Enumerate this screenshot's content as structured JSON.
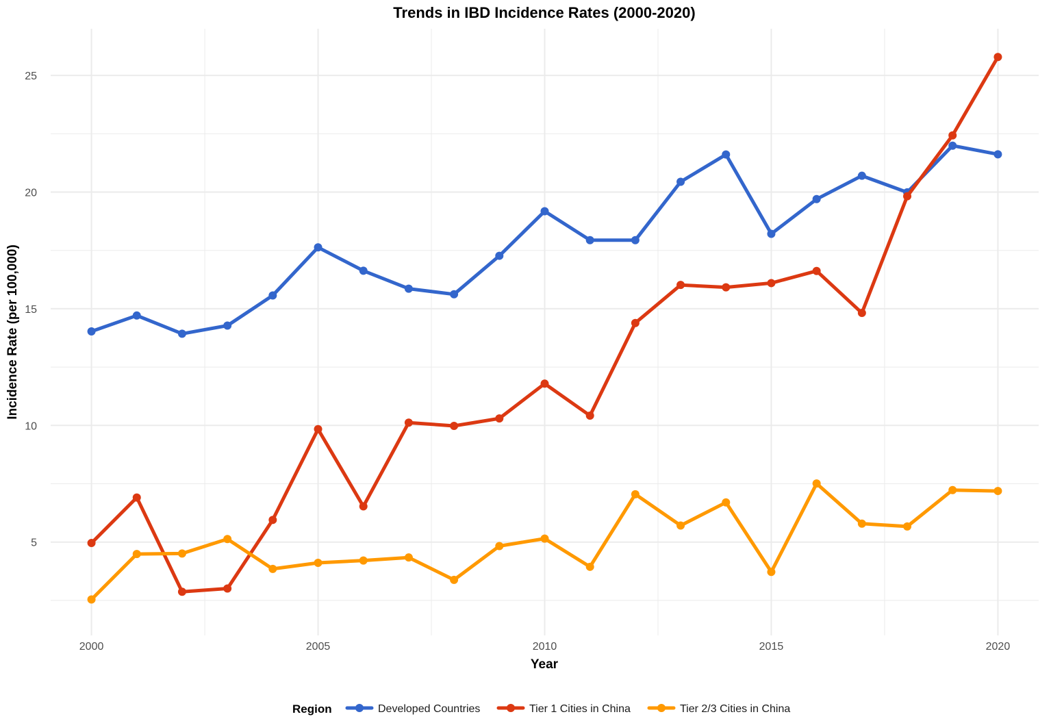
{
  "chart_data": {
    "type": "line",
    "title": "Trends in IBD Incidence Rates (2000-2020)",
    "xlabel": "Year",
    "ylabel": "Incidence Rate (per 100,000)",
    "x": [
      2000,
      2001,
      2002,
      2003,
      2004,
      2005,
      2006,
      2007,
      2008,
      2009,
      2010,
      2011,
      2012,
      2013,
      2014,
      2015,
      2016,
      2017,
      2018,
      2019,
      2020
    ],
    "x_ticks": [
      2000,
      2005,
      2010,
      2015,
      2020
    ],
    "x_tick_labels": [
      "2000",
      "2005",
      "2010",
      "2015",
      "2020"
    ],
    "y_ticks": [
      5,
      10,
      15,
      20,
      25
    ],
    "y_tick_labels": [
      "5",
      "10",
      "15",
      "20",
      "25"
    ],
    "xlim": [
      1999.1,
      2020.9
    ],
    "ylim": [
      1.0,
      27.0
    ],
    "grid": true,
    "legend": {
      "title": "Region",
      "position": "bottom"
    },
    "series": [
      {
        "name": "Developed Countries",
        "color": "#3366cc",
        "values": [
          14.03,
          14.71,
          13.93,
          14.28,
          15.57,
          17.63,
          16.63,
          15.86,
          15.62,
          17.27,
          19.18,
          17.94,
          17.94,
          20.44,
          21.61,
          18.21,
          19.7,
          20.7,
          19.99,
          21.99,
          21.62
        ]
      },
      {
        "name": "Tier 1 Cities in China",
        "color": "#dc3912",
        "values": [
          4.96,
          6.91,
          2.87,
          3.01,
          5.95,
          9.84,
          6.53,
          10.12,
          9.98,
          10.3,
          11.79,
          10.42,
          14.39,
          16.02,
          15.92,
          16.1,
          16.62,
          14.82,
          19.82,
          22.43,
          25.79
        ]
      },
      {
        "name": "Tier 2/3 Cities in China",
        "color": "#ff9900",
        "values": [
          2.54,
          4.49,
          4.51,
          5.13,
          3.85,
          4.11,
          4.21,
          4.34,
          3.38,
          4.83,
          5.15,
          3.94,
          7.05,
          5.71,
          6.7,
          3.72,
          7.51,
          5.79,
          5.67,
          7.23,
          7.19
        ]
      }
    ]
  }
}
